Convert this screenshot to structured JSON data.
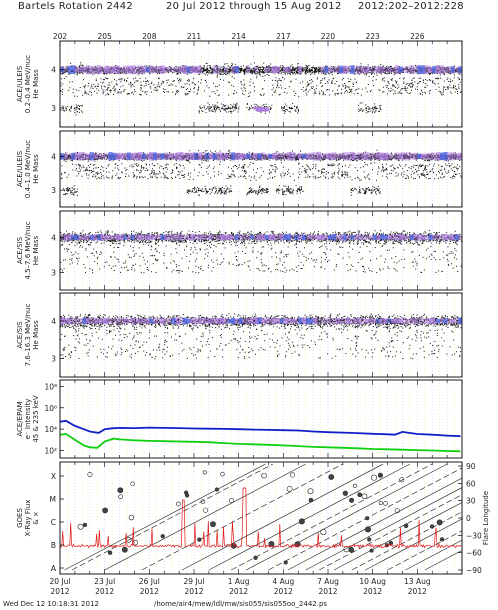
{
  "header": {
    "title_left": "Bartels Rotation 2442",
    "title_mid": "20 Jul 2012  through 15 Aug 2012",
    "title_right": "2012:202–2012:228"
  },
  "footer": {
    "timestamp": "Wed Dec 12 10:18:31 2012",
    "path": "/home/air4/mew/ldl/mw/sis055/sis055oo_2442.ps"
  },
  "chart_data": {
    "type": "scatter",
    "x_range_doy": [
      202,
      229
    ],
    "top_day_ticks": [
      "202",
      "205",
      "208",
      "211",
      "214",
      "217",
      "220",
      "223",
      "226"
    ],
    "bottom_date_ticks": [
      {
        "day": "20 Jul",
        "year": "2012"
      },
      {
        "day": "23 Jul",
        "year": "2012"
      },
      {
        "day": "26 Jul",
        "year": "2012"
      },
      {
        "day": "29 Jul",
        "year": "2012"
      },
      {
        "day": "1 Aug",
        "year": "2012"
      },
      {
        "day": "4 Aug",
        "year": "2012"
      },
      {
        "day": "7 Aug",
        "year": "2012"
      },
      {
        "day": "10 Aug",
        "year": "2012"
      },
      {
        "day": "13 Aug",
        "year": "2012"
      }
    ],
    "panels": [
      {
        "id": "uleis-1",
        "ylabel": [
          "ACE/ULEIS",
          "0.2–0.4 MeV/nuc",
          "He Mass"
        ],
        "yticks": [
          "4",
          "3"
        ],
        "he4_band": 4.0,
        "he3_intervals": [
          [
            202,
            203.5
          ],
          [
            211.3,
            214
          ],
          [
            214.5,
            216.2
          ],
          [
            216.8,
            218
          ],
          [
            222,
            223.6
          ]
        ]
      },
      {
        "id": "uleis-2",
        "ylabel": [
          "ACE/ULEIS",
          "0.4–1.0 MeV/nuc",
          "He Mass"
        ],
        "yticks": [
          "4",
          "3"
        ],
        "he4_band": 4.0,
        "he3_intervals": [
          [
            202.2,
            203.2
          ],
          [
            210.5,
            213.5
          ],
          [
            214.5,
            216
          ],
          [
            216.5,
            218.3
          ],
          [
            221.5,
            223.5
          ]
        ]
      },
      {
        "id": "sis-1",
        "ylabel": [
          "ACE/SIS",
          "4.5–7.6 MeV/nuc",
          "He Mass"
        ],
        "yticks": [
          "4",
          "3"
        ],
        "he4_band": 4.0
      },
      {
        "id": "sis-2",
        "ylabel": [
          "ACE/SIS",
          "7.6–16.3 MeV/nuc",
          "He Mass"
        ],
        "yticks": [
          "4",
          "3"
        ],
        "he4_band": 4.0
      },
      {
        "id": "epam",
        "ylabel": [
          "ACE/EPAM",
          "e⁻ Intensity",
          "45 & 235 keV"
        ],
        "yscale": "log",
        "yticks": [
          {
            "value": 100000000.0,
            "label": "10⁸"
          },
          {
            "value": 1000000.0,
            "label": "10⁶"
          },
          {
            "value": 10000.0,
            "label": "10⁴"
          },
          {
            "value": 100.0,
            "label": "10²"
          }
        ],
        "series": [
          {
            "color": "#1020c8",
            "x": [
              202.0,
              202.4,
              203.0,
              203.6,
              204.0,
              204.6,
              205.0,
              205.5,
              206.0,
              207.0,
              208.0,
              209.0,
              210.0,
              211.0,
              212.0,
              213.0,
              214.0,
              215.0,
              216.0,
              217.0,
              218.0,
              219.0,
              220.0,
              221.0,
              222.0,
              223.0,
              224.0,
              224.5,
              225.0,
              226.0,
              227.0,
              228.0,
              228.9
            ],
            "y": [
              50000.0,
              60000.0,
              20000.0,
              10000.0,
              6000.0,
              4500.0,
              10000.0,
              12000.0,
              13000.0,
              12500.0,
              14000.0,
              13000.0,
              12500.0,
              11500.0,
              11000.0,
              10500.0,
              10000.0,
              9000.0,
              8500.0,
              8000.0,
              7500.0,
              6000.0,
              5200.0,
              4800.0,
              4300.0,
              3700.0,
              3300.0,
              3000.0,
              5500.0,
              3500.0,
              3000.0,
              2500.0,
              2200.0
            ]
          },
          {
            "color": "#10d010",
            "x": [
              202.0,
              202.4,
              203.0,
              203.6,
              204.0,
              204.5,
              205.0,
              205.6,
              206.0,
              207.0,
              208.0,
              209.0,
              210.0,
              211.0,
              212.0,
              213.0,
              214.0,
              215.0,
              216.0,
              217.0,
              218.0,
              219.0,
              220.0,
              221.0,
              222.0,
              223.0,
              224.0,
              225.0,
              226.0,
              227.0,
              228.0,
              228.9
            ],
            "y": [
              3000.0,
              3500.0,
              1000.0,
              300.0,
              200.0,
              180.0,
              700.0,
              1300.0,
              1100.0,
              900.0,
              800.0,
              750.0,
              700.0,
              650.0,
              600.0,
              500.0,
              420.0,
              380.0,
              340.0,
              300.0,
              260.0,
              220.0,
              200.0,
              180.0,
              160.0,
              140.0,
              130.0,
              120.0,
              110.0,
              100.0,
              90.0,
              85.0
            ]
          }
        ]
      },
      {
        "id": "goes",
        "ylabel": [
          "GOES",
          "X-Ray Flux",
          "& ×"
        ],
        "left_ticks": [
          "X",
          "M",
          "C",
          "B",
          "A"
        ],
        "right_label": "Flare Longitude",
        "right_ticks": [
          "90",
          "60",
          "30",
          "0",
          "−30",
          "−60",
          "−90"
        ]
      }
    ]
  }
}
